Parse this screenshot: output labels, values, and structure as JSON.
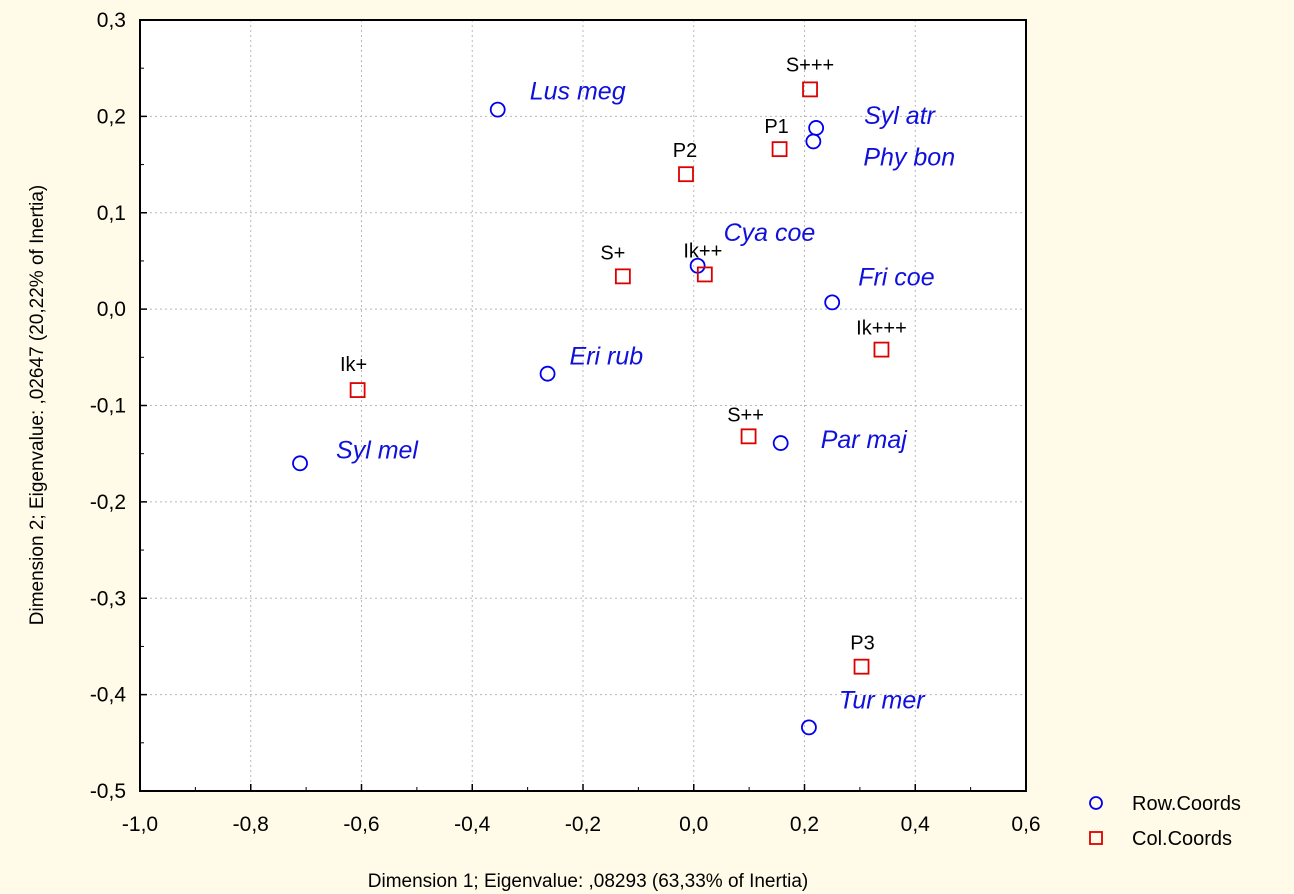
{
  "chart_data": {
    "type": "scatter",
    "xlabel": "Dimension 1; Eigenvalue: ,08293 (63,33% of Inertia)",
    "ylabel": "Dimension 2; Eigenvalue: ,02647 (20,22% of Inertia)",
    "xlim": [
      -1.0,
      0.6
    ],
    "ylim": [
      -0.5,
      0.3
    ],
    "x_ticks": [
      -1.0,
      -0.8,
      -0.6,
      -0.4,
      -0.2,
      0.0,
      0.2,
      0.4,
      0.6
    ],
    "x_tick_labels": [
      "-1,0",
      "-0,8",
      "-0,6",
      "-0,4",
      "-0,2",
      "0,0",
      "0,2",
      "0,4",
      "0,6"
    ],
    "y_ticks": [
      0.3,
      0.2,
      0.1,
      0.0,
      -0.1,
      -0.2,
      -0.3,
      -0.4,
      -0.5
    ],
    "y_tick_labels": [
      "0,3",
      "0,2",
      "0,1",
      "0,0",
      "-0,1",
      "-0,2",
      "-0,3",
      "-0,4",
      "-0,5"
    ],
    "grid": true,
    "legend_position": "bottom-right",
    "series": [
      {
        "name": "Row.Coords",
        "marker": "circle",
        "color": "#0000ee",
        "label_color": "#1010dd",
        "points": [
          {
            "label": "Lus meg",
            "x": -0.354,
            "y": 0.207
          },
          {
            "label": "Syl atr",
            "x": 0.221,
            "y": 0.188
          },
          {
            "label": "Phy bon",
            "x": 0.216,
            "y": 0.174
          },
          {
            "label": "Cya coe",
            "x": 0.007,
            "y": 0.045
          },
          {
            "label": "Fri coe",
            "x": 0.25,
            "y": 0.007
          },
          {
            "label": "Eri rub",
            "x": -0.264,
            "y": -0.067
          },
          {
            "label": "Par maj",
            "x": 0.157,
            "y": -0.139
          },
          {
            "label": "Syl mel",
            "x": -0.711,
            "y": -0.16
          },
          {
            "label": "Tur mer",
            "x": 0.208,
            "y": -0.434
          }
        ]
      },
      {
        "name": "Col.Coords",
        "marker": "square",
        "color": "#dd0000",
        "label_color": "#000000",
        "points": [
          {
            "label": "S+++",
            "x": 0.21,
            "y": 0.228
          },
          {
            "label": "P1",
            "x": 0.155,
            "y": 0.166
          },
          {
            "label": "P2",
            "x": -0.014,
            "y": 0.14
          },
          {
            "label": "S+",
            "x": -0.128,
            "y": 0.034
          },
          {
            "label": "Ik++",
            "x": 0.02,
            "y": 0.036
          },
          {
            "label": "Ik+++",
            "x": 0.339,
            "y": -0.042
          },
          {
            "label": "Ik+",
            "x": -0.607,
            "y": -0.084
          },
          {
            "label": "S++",
            "x": 0.099,
            "y": -0.132
          },
          {
            "label": "P3",
            "x": 0.303,
            "y": -0.371
          }
        ]
      }
    ]
  }
}
